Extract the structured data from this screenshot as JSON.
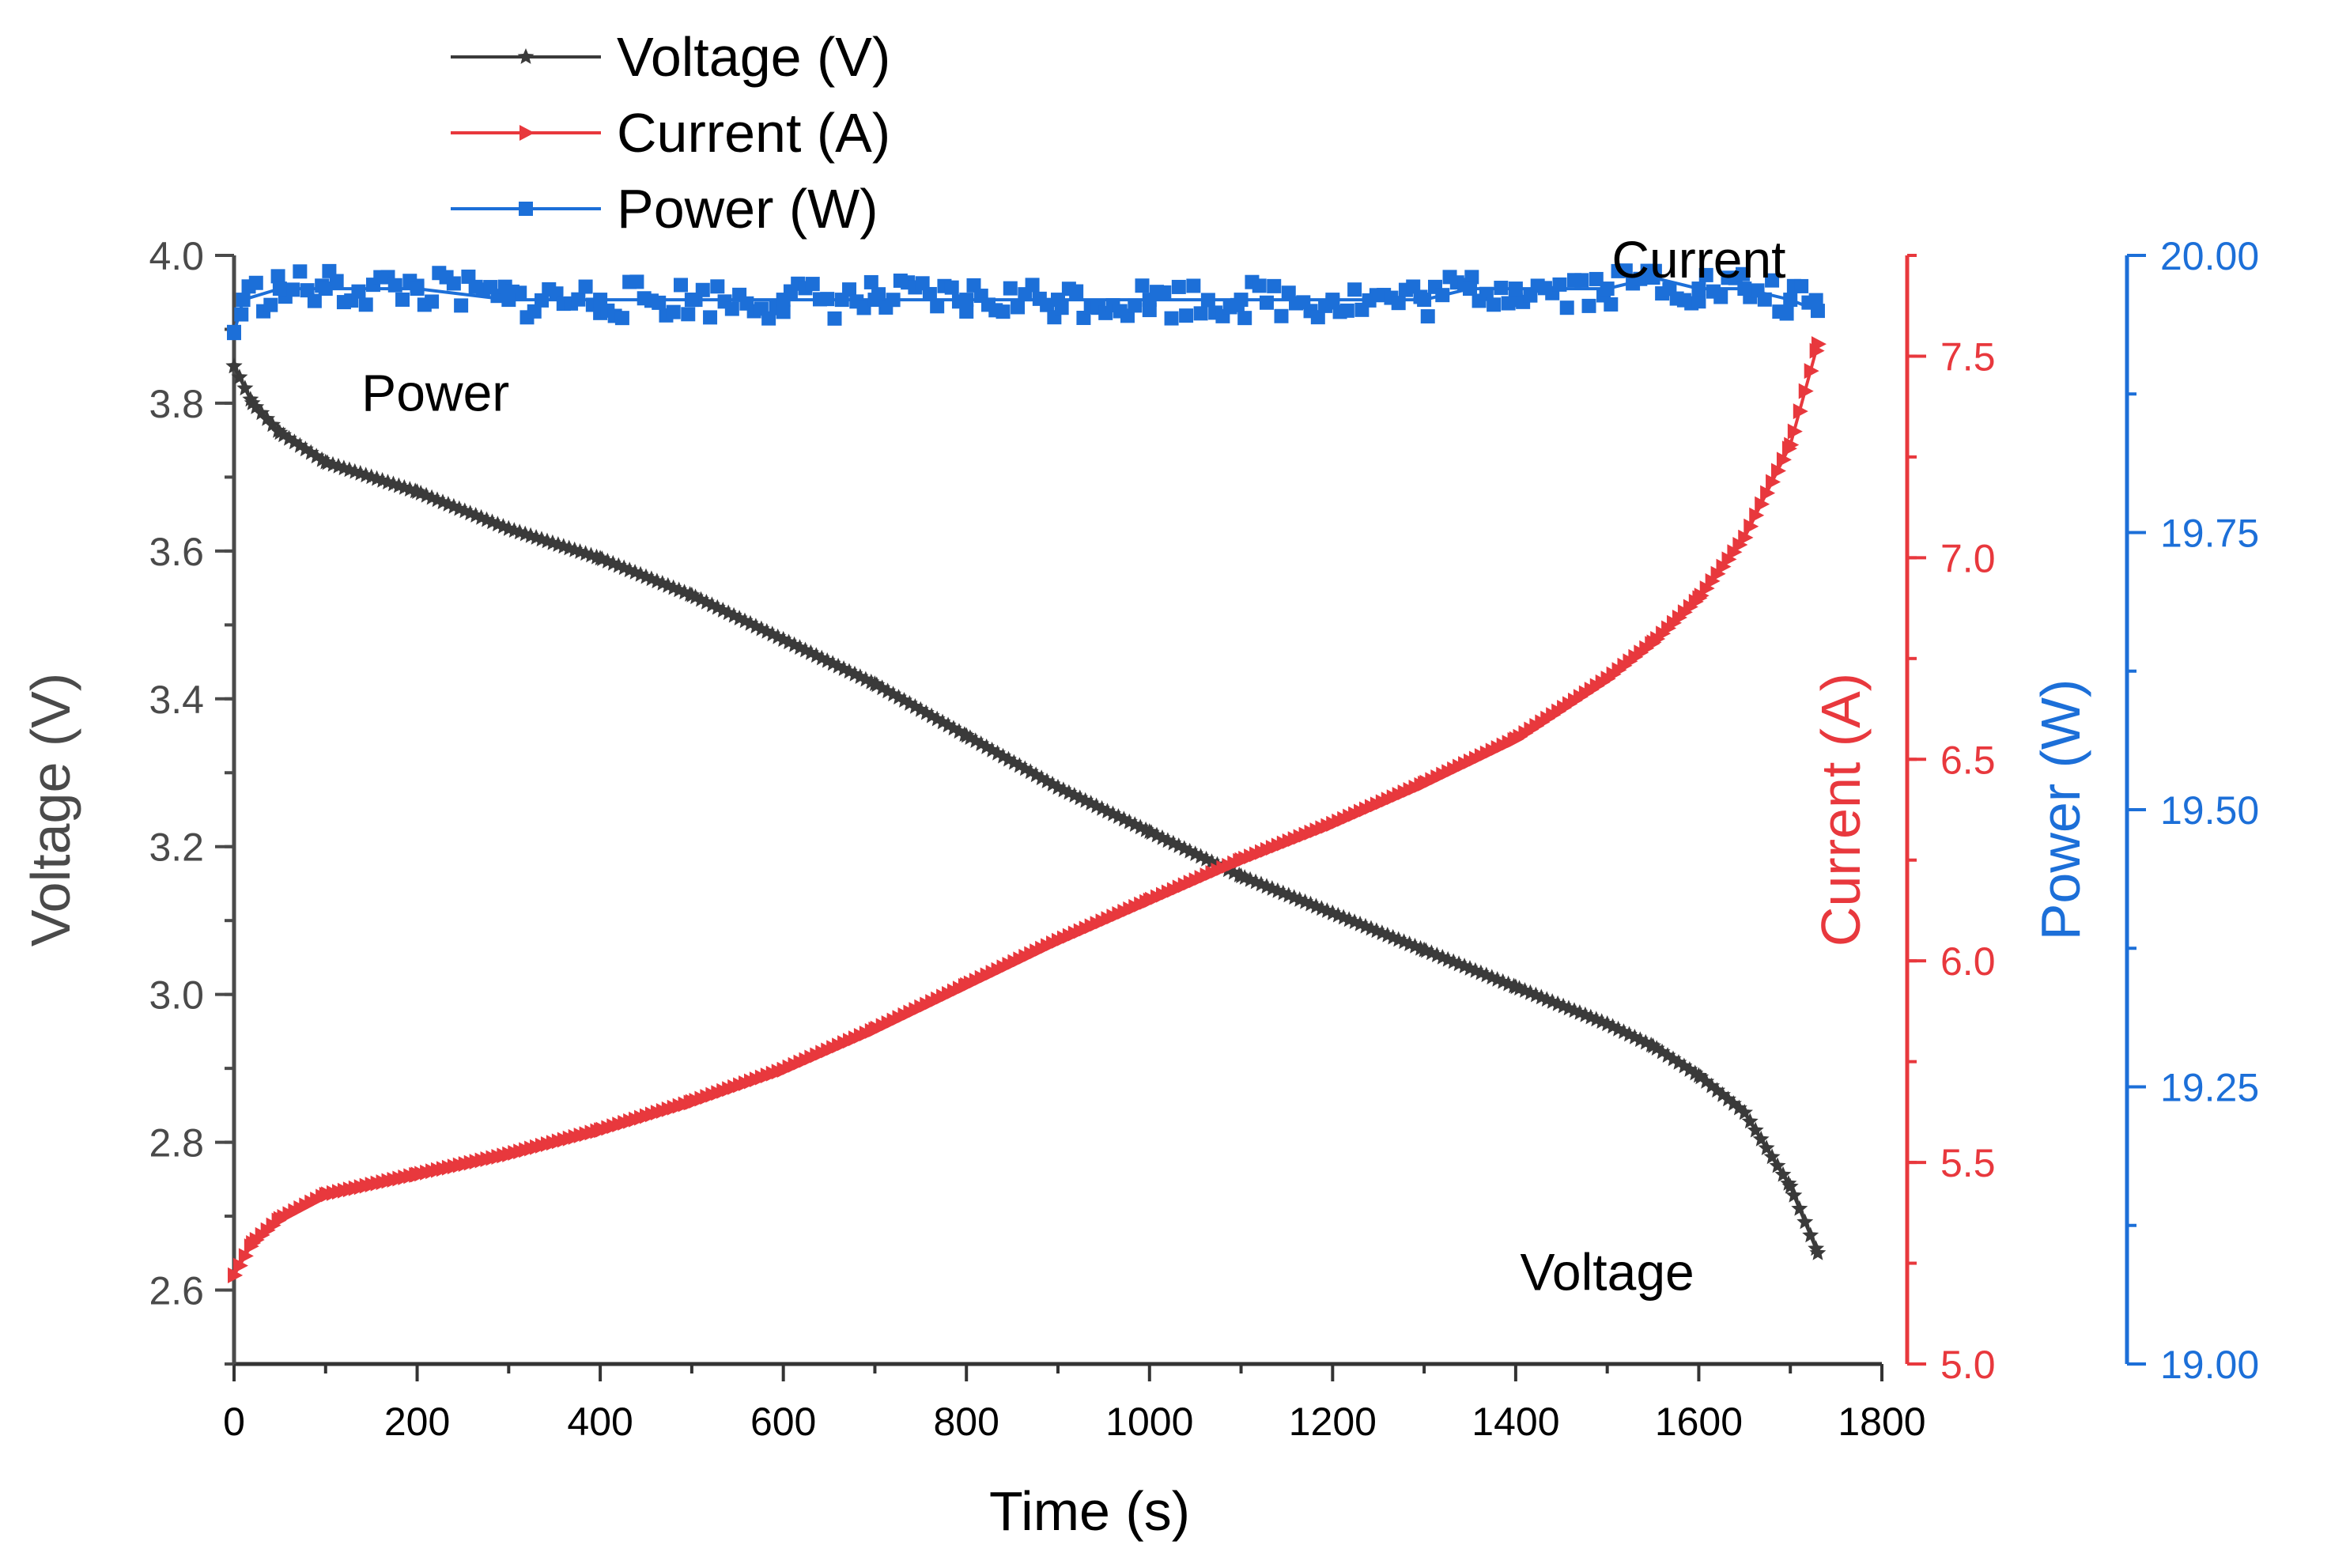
{
  "chart_data": {
    "type": "line",
    "x_axis": {
      "label": "Time (s)",
      "range": [
        0,
        1800
      ],
      "ticks": [
        0,
        200,
        400,
        600,
        800,
        1000,
        1200,
        1400,
        1600,
        1800
      ],
      "tick_labels": [
        "0",
        "200",
        "400",
        "600",
        "800",
        "1000",
        "1200",
        "1400",
        "1600",
        "1800"
      ]
    },
    "y_axes": [
      {
        "id": "voltage",
        "label": "Voltage (V)",
        "range": [
          2.5,
          4.0
        ],
        "ticks": [
          2.6,
          2.8,
          3.0,
          3.2,
          3.4,
          3.6,
          3.8,
          4.0
        ],
        "tick_labels": [
          "2.6",
          "2.8",
          "3.0",
          "3.2",
          "3.4",
          "3.6",
          "3.8",
          "4.0"
        ],
        "color": "#4a4a4a"
      },
      {
        "id": "current",
        "label": "Current (A)",
        "range": [
          5.0,
          7.75
        ],
        "ticks": [
          5.0,
          5.5,
          6.0,
          6.5,
          7.0,
          7.5
        ],
        "tick_labels": [
          "5.0",
          "5.5",
          "6.0",
          "6.5",
          "7.0",
          "7.5"
        ],
        "color": "#e8383d"
      },
      {
        "id": "power",
        "label": "Power (W)",
        "range": [
          19.0,
          20.0
        ],
        "ticks": [
          19.0,
          19.25,
          19.5,
          19.75,
          20.0
        ],
        "tick_labels": [
          "19.00",
          "19.25",
          "19.50",
          "19.75",
          "20.00"
        ],
        "color": "#1c6fd8"
      }
    ],
    "series": [
      {
        "name": "Voltage (V)",
        "axis": "voltage",
        "color": "#3a3a3a",
        "marker": "star",
        "x": [
          0,
          20,
          50,
          100,
          200,
          300,
          400,
          500,
          600,
          700,
          800,
          900,
          1000,
          1100,
          1200,
          1300,
          1400,
          1500,
          1550,
          1600,
          1650,
          1700,
          1730
        ],
        "y": [
          3.85,
          3.8,
          3.76,
          3.72,
          3.68,
          3.63,
          3.59,
          3.54,
          3.48,
          3.42,
          3.35,
          3.28,
          3.22,
          3.16,
          3.11,
          3.06,
          3.01,
          2.96,
          2.93,
          2.89,
          2.84,
          2.74,
          2.65
        ]
      },
      {
        "name": "Current (A)",
        "axis": "current",
        "color": "#e8383d",
        "marker": "triangle-right",
        "x": [
          0,
          20,
          50,
          100,
          200,
          300,
          400,
          500,
          600,
          700,
          800,
          900,
          1000,
          1100,
          1200,
          1300,
          1400,
          1500,
          1550,
          1600,
          1650,
          1700,
          1730
        ],
        "y": [
          5.22,
          5.3,
          5.36,
          5.42,
          5.47,
          5.52,
          5.58,
          5.65,
          5.73,
          5.83,
          5.94,
          6.05,
          6.15,
          6.25,
          6.34,
          6.44,
          6.55,
          6.7,
          6.79,
          6.9,
          7.05,
          7.28,
          7.53
        ]
      },
      {
        "name": "Power (W)",
        "axis": "power",
        "color": "#1c6fd8",
        "marker": "square",
        "x": [
          0,
          10,
          50,
          100,
          200,
          300,
          400,
          500,
          600,
          700,
          800,
          900,
          1000,
          1100,
          1200,
          1300,
          1350,
          1400,
          1500,
          1550,
          1600,
          1650,
          1700,
          1730
        ],
        "y": [
          19.93,
          19.96,
          19.97,
          19.97,
          19.97,
          19.96,
          19.96,
          19.96,
          19.96,
          19.96,
          19.96,
          19.96,
          19.96,
          19.96,
          19.96,
          19.96,
          19.97,
          19.97,
          19.97,
          19.98,
          19.97,
          19.97,
          19.96,
          19.95
        ]
      }
    ],
    "legend": {
      "placement": "top-left",
      "entries": [
        "Voltage (V)",
        "Current (A)",
        "Power (W)"
      ]
    },
    "annotations": [
      {
        "text": "Power",
        "x": 220,
        "axis": "power",
        "y": 19.86
      },
      {
        "text": "Current",
        "x": 1600,
        "axis": "power",
        "y": 19.98
      },
      {
        "text": "Voltage",
        "x": 1500,
        "axis": "voltage",
        "y": 2.6
      }
    ],
    "grid": false
  }
}
